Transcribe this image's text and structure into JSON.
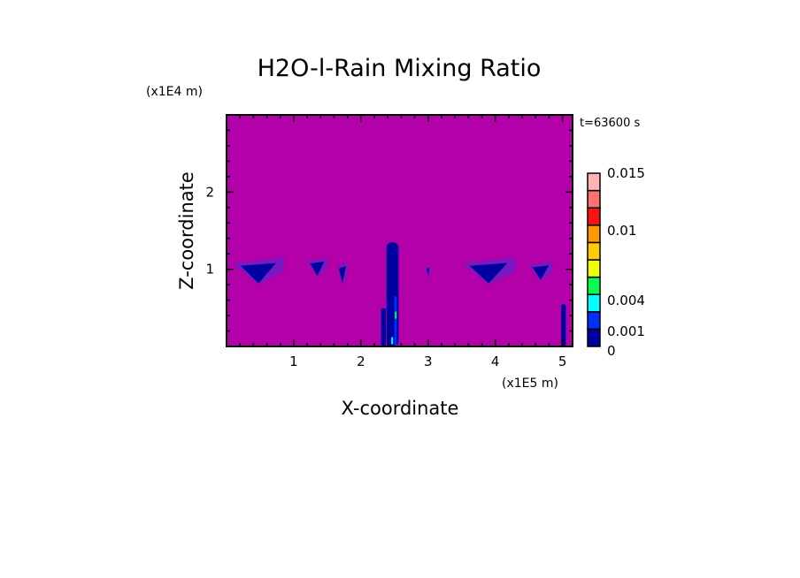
{
  "chart_data": {
    "type": "heatmap",
    "title": "H2O-l-Rain Mixing Ratio",
    "xlabel": "X-coordinate",
    "ylabel": "Z-coordinate",
    "x_scale_label": "(x1E5 m)",
    "y_scale_label": "(x1E4 m)",
    "time_label": "t=63600 s",
    "xlim": [
      0,
      5.15
    ],
    "ylim": [
      0,
      3.0
    ],
    "x_ticks": [
      1,
      2,
      3,
      4,
      5
    ],
    "y_ticks": [
      1,
      2
    ],
    "x_tick_labels": [
      "1",
      "2",
      "3",
      "4",
      "5"
    ],
    "y_tick_labels": [
      "1",
      "2"
    ],
    "background_color": "#b400a8",
    "colorbar": {
      "colors": [
        "#0000a0",
        "#0030ff",
        "#00ffff",
        "#00ff50",
        "#eeff00",
        "#ffcc00",
        "#ff9900",
        "#ff1010",
        "#ff7070",
        "#ffb4b4"
      ],
      "labels": [
        {
          "text": "0",
          "value": 0
        },
        {
          "text": "0.001",
          "value": 0.001
        },
        {
          "text": "0.004",
          "value": 0.004
        },
        {
          "text": "0.01",
          "value": 0.01
        },
        {
          "text": "0.015",
          "value": 0.015
        }
      ]
    },
    "rain_regions": [
      {
        "x": [
          0.1,
          0.85
        ],
        "z": [
          0.8,
          1.15
        ],
        "level": "0-0.001"
      },
      {
        "x": [
          1.2,
          1.5
        ],
        "z": [
          0.9,
          1.15
        ],
        "level": "0-0.001"
      },
      {
        "x": [
          1.65,
          1.8
        ],
        "z": [
          0.8,
          1.1
        ],
        "level": "0-0.001"
      },
      {
        "x": [
          2.38,
          2.56
        ],
        "z": [
          0.0,
          1.35
        ],
        "level": "0-0.004"
      },
      {
        "x": [
          2.3,
          2.37
        ],
        "z": [
          0.0,
          0.5
        ],
        "level": "0-0.001"
      },
      {
        "x": [
          2.97,
          3.03
        ],
        "z": [
          0.9,
          1.05
        ],
        "level": "0-0.001"
      },
      {
        "x": [
          3.5,
          4.3
        ],
        "z": [
          0.8,
          1.15
        ],
        "level": "0-0.001"
      },
      {
        "x": [
          4.5,
          4.85
        ],
        "z": [
          0.85,
          1.1
        ],
        "level": "0-0.001"
      },
      {
        "x": [
          4.98,
          5.05
        ],
        "z": [
          0.0,
          0.55
        ],
        "level": "0-0.001"
      }
    ]
  }
}
